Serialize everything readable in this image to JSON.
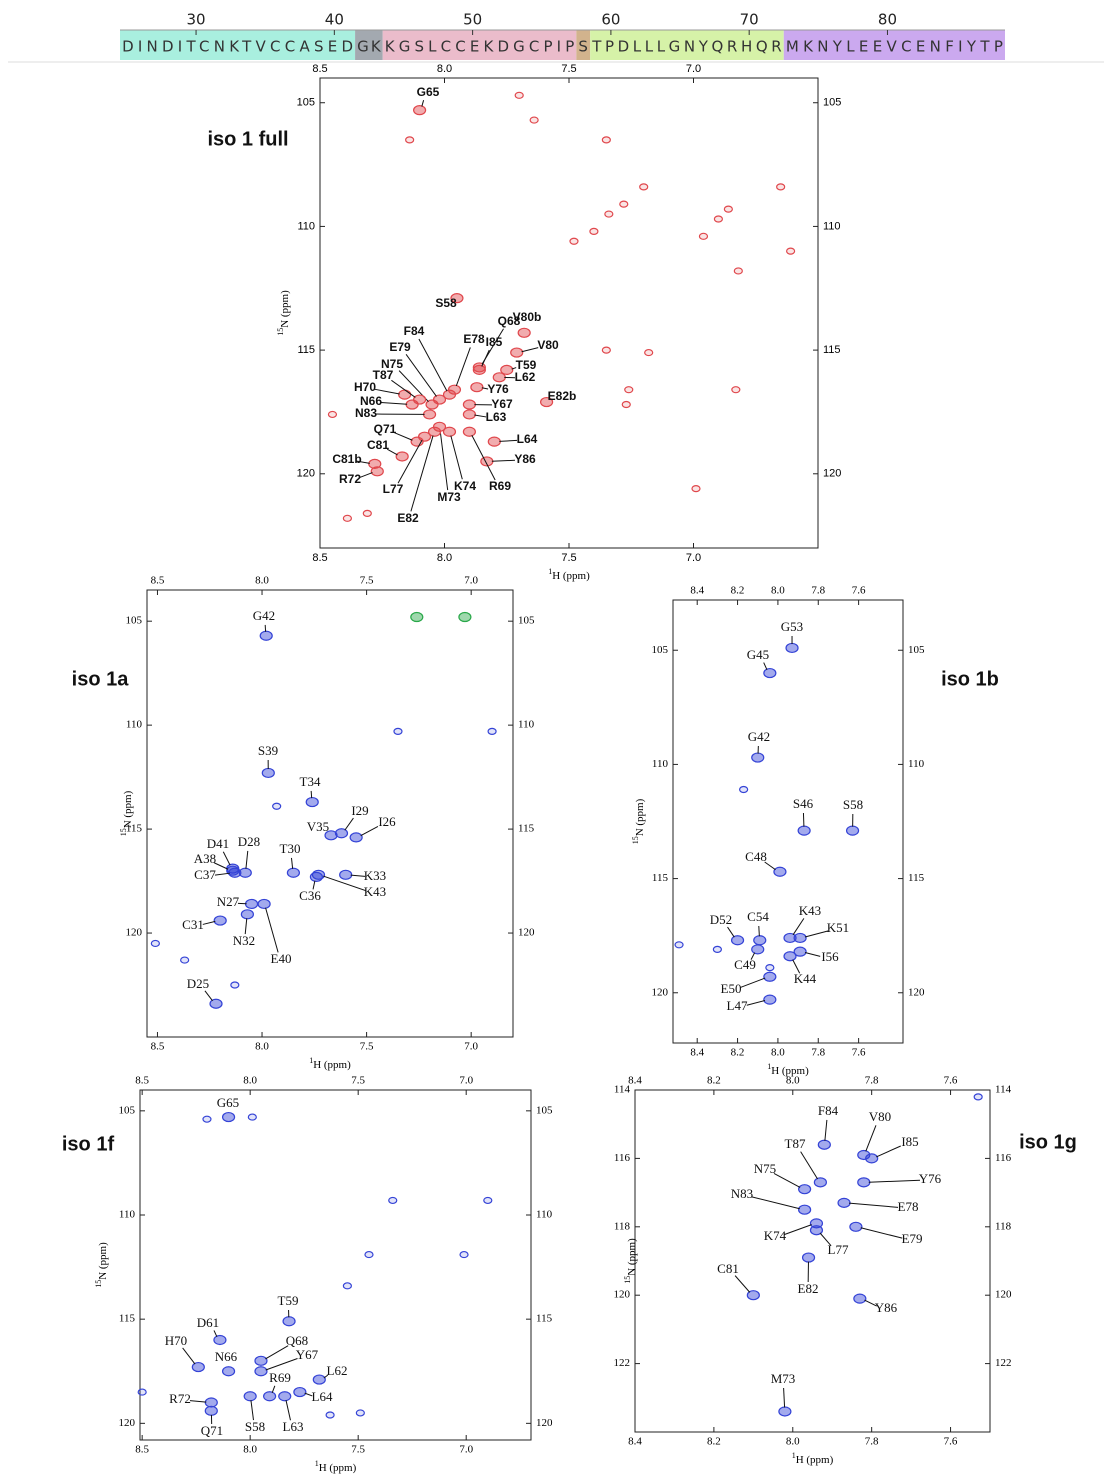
{
  "sequence": {
    "start": 25,
    "ticks": [
      30,
      40,
      50,
      60,
      70,
      80
    ],
    "segments": [
      {
        "residues": "DINDITCNKTVCCASED",
        "color": "#a9efdf"
      },
      {
        "residues": "GK",
        "color": "#a3a9b0"
      },
      {
        "residues": "KGSLCCEKDGCPIP",
        "color": "#ebbccb"
      },
      {
        "residues": "S",
        "color": "#d2b38d"
      },
      {
        "residues": "TPDLLLGNYQRHQR",
        "color": "#d6f2a8"
      },
      {
        "residues": "MKNYLEEVCENFIYTP",
        "color": "#cba9ef"
      }
    ]
  },
  "panels": [
    {
      "type": "scatter",
      "title": "iso 1 full",
      "color": "#e0474c",
      "x_label": {
        "sup": "1",
        "text": "H (ppm)"
      },
      "y_label": {
        "sup": "15",
        "text": "N (ppm)"
      },
      "xlim": [
        8.5,
        6.5
      ],
      "ylim": [
        104,
        123
      ],
      "xticks": [
        8.5,
        {
          "value": 8,
          "label": "8.0"
        },
        7.5,
        {
          "value": 7,
          "label": "7.0"
        }
      ],
      "yticks": [
        105,
        110,
        115,
        120
      ],
      "peaks": [
        {
          "label": "G65",
          "x": 8.1,
          "y": 105.3
        },
        {
          "label": "S58",
          "x": 7.95,
          "y": 112.9
        },
        {
          "label": "F84",
          "x": 7.98,
          "y": 116.8
        },
        {
          "label": "E78",
          "x": 7.96,
          "y": 116.6
        },
        {
          "label": "Q68",
          "x": 7.86,
          "y": 115.7
        },
        {
          "label": "V80b",
          "x": 7.68,
          "y": 114.3
        },
        {
          "label": "I85",
          "x": 7.86,
          "y": 115.8
        },
        {
          "label": "V80",
          "x": 7.71,
          "y": 115.1
        },
        {
          "label": "T59",
          "x": 7.75,
          "y": 115.8
        },
        {
          "label": "L62",
          "x": 7.78,
          "y": 116.1
        },
        {
          "label": "E79",
          "x": 8.02,
          "y": 117.0
        },
        {
          "label": "N75",
          "x": 8.05,
          "y": 117.2
        },
        {
          "label": "Y76",
          "x": 7.87,
          "y": 116.5
        },
        {
          "label": "H70",
          "x": 8.16,
          "y": 116.8
        },
        {
          "label": "T87",
          "x": 8.1,
          "y": 117.0
        },
        {
          "label": "Y67",
          "x": 7.9,
          "y": 117.2
        },
        {
          "label": "N66",
          "x": 8.13,
          "y": 117.2
        },
        {
          "label": "L63",
          "x": 7.9,
          "y": 117.6
        },
        {
          "label": "N83",
          "x": 8.06,
          "y": 117.6
        },
        {
          "label": "Q71",
          "x": 8.11,
          "y": 118.7
        },
        {
          "label": "L64",
          "x": 7.8,
          "y": 118.7
        },
        {
          "label": "C81",
          "x": 8.17,
          "y": 119.3
        },
        {
          "label": "Y86",
          "x": 7.83,
          "y": 119.5
        },
        {
          "label": "C81b",
          "x": 8.28,
          "y": 119.6
        },
        {
          "label": "R72",
          "x": 8.27,
          "y": 119.9
        },
        {
          "label": "R69",
          "x": 7.9,
          "y": 118.3
        },
        {
          "label": "K74",
          "x": 7.98,
          "y": 118.3
        },
        {
          "label": "M73",
          "x": 8.02,
          "y": 118.1
        },
        {
          "label": "L77",
          "x": 8.08,
          "y": 118.5
        },
        {
          "label": "E82",
          "x": 8.04,
          "y": 118.3
        },
        {
          "label": "E82b",
          "x": 7.59,
          "y": 117.1
        }
      ],
      "unlabeled": {
        "x": [
          7.7,
          7.64,
          8.14,
          7.35,
          7.2,
          6.65,
          7.48,
          7.4,
          7.34,
          7.28,
          6.96,
          6.9,
          6.86,
          6.61,
          6.82,
          7.35,
          7.18,
          7.26,
          7.27,
          6.83,
          6.99,
          8.39,
          8.45,
          8.31
        ],
        "y": [
          104.7,
          105.7,
          106.5,
          106.5,
          108.4,
          108.4,
          110.6,
          110.2,
          109.5,
          109.1,
          110.4,
          109.7,
          109.3,
          111.0,
          111.8,
          115.0,
          115.1,
          116.6,
          117.2,
          116.6,
          120.6,
          121.8,
          117.6,
          121.6
        ]
      }
    },
    {
      "type": "scatter",
      "title": "iso 1a",
      "color": "#3443d6",
      "x_label": {
        "sup": "1",
        "text": "H (ppm)"
      },
      "y_label": {
        "sup": "15",
        "text": "N (ppm)"
      },
      "xlim": [
        8.55,
        6.8
      ],
      "ylim": [
        103.5,
        125
      ],
      "xticks": [
        8.5,
        {
          "value": 8,
          "label": "8.0"
        },
        7.5,
        {
          "value": 7,
          "label": "7.0"
        }
      ],
      "yticks": [
        105,
        110,
        115,
        120
      ],
      "peaks": [
        {
          "label": "G42",
          "x": 7.98,
          "y": 105.7
        },
        {
          "label": "S39",
          "x": 7.97,
          "y": 112.3
        },
        {
          "label": "T34",
          "x": 7.76,
          "y": 113.7
        },
        {
          "label": "I29",
          "x": 7.62,
          "y": 115.2
        },
        {
          "label": "V35",
          "x": 7.67,
          "y": 115.3
        },
        {
          "label": "I26",
          "x": 7.55,
          "y": 115.4
        },
        {
          "label": "D41",
          "x": 8.14,
          "y": 116.9
        },
        {
          "label": "D28",
          "x": 8.08,
          "y": 117.1
        },
        {
          "label": "T30",
          "x": 7.85,
          "y": 117.1
        },
        {
          "label": "A38",
          "x": 8.14,
          "y": 117.0
        },
        {
          "label": "C37",
          "x": 8.13,
          "y": 117.1
        },
        {
          "label": "K33",
          "x": 7.6,
          "y": 117.2
        },
        {
          "label": "K43",
          "x": 7.73,
          "y": 117.2
        },
        {
          "label": "C36",
          "x": 7.74,
          "y": 117.3
        },
        {
          "label": "N27",
          "x": 8.05,
          "y": 118.6
        },
        {
          "label": "C31",
          "x": 8.2,
          "y": 119.4
        },
        {
          "label": "N32",
          "x": 8.07,
          "y": 119.1
        },
        {
          "label": "E40",
          "x": 7.99,
          "y": 118.6
        },
        {
          "label": "D25",
          "x": 8.22,
          "y": 123.4
        }
      ],
      "unlabeled": {
        "x": [
          7.35,
          6.9,
          7.93,
          8.51,
          8.37,
          8.13
        ],
        "y": [
          110.3,
          110.3,
          113.9,
          120.5,
          121.3,
          122.5
        ]
      },
      "other_peaks": {
        "color": "#2aa84a",
        "x": [
          7.26,
          7.03
        ],
        "y": [
          104.8,
          104.8
        ]
      }
    },
    {
      "type": "scatter",
      "title": "iso 1b",
      "color": "#3443d6",
      "x_label": {
        "sup": "1",
        "text": "H (ppm)"
      },
      "y_label": {
        "sup": "15",
        "text": "N (ppm)"
      },
      "xlim": [
        8.52,
        7.38
      ],
      "ylim": [
        102.8,
        122.2
      ],
      "xticks": [
        8.4,
        8.2,
        {
          "value": 8,
          "label": "8.0"
        },
        7.8,
        7.6
      ],
      "yticks": [
        105,
        110,
        115,
        120
      ],
      "peaks": [
        {
          "label": "G53",
          "x": 7.93,
          "y": 104.9
        },
        {
          "label": "G45",
          "x": 8.04,
          "y": 106.0
        },
        {
          "label": "G42",
          "x": 8.1,
          "y": 109.7
        },
        {
          "label": "S46",
          "x": 7.87,
          "y": 112.9
        },
        {
          "label": "S58",
          "x": 7.63,
          "y": 112.9
        },
        {
          "label": "C48",
          "x": 7.99,
          "y": 114.7
        },
        {
          "label": "D52",
          "x": 8.2,
          "y": 117.7
        },
        {
          "label": "C54",
          "x": 8.09,
          "y": 117.7
        },
        {
          "label": "K43",
          "x": 7.94,
          "y": 117.6
        },
        {
          "label": "K51",
          "x": 7.89,
          "y": 117.6
        },
        {
          "label": "I56",
          "x": 7.89,
          "y": 118.2
        },
        {
          "label": "C49",
          "x": 8.1,
          "y": 118.1
        },
        {
          "label": "K44",
          "x": 7.94,
          "y": 118.4
        },
        {
          "label": "E50",
          "x": 8.04,
          "y": 119.3
        },
        {
          "label": "L47",
          "x": 8.04,
          "y": 120.3
        }
      ],
      "unlabeled": {
        "x": [
          8.17,
          8.49,
          8.3,
          8.04
        ],
        "y": [
          111.1,
          117.9,
          118.1,
          118.9
        ]
      }
    },
    {
      "type": "scatter",
      "title": "iso 1f",
      "color": "#3443d6",
      "x_label": {
        "sup": "1",
        "text": "H (ppm)"
      },
      "y_label": {
        "sup": "15",
        "text": "N (ppm)"
      },
      "xlim": [
        8.51,
        6.7
      ],
      "ylim": [
        104,
        120.8
      ],
      "xticks": [
        8.5,
        {
          "value": 8,
          "label": "8.0"
        },
        7.5,
        {
          "value": 7,
          "label": "7.0"
        }
      ],
      "yticks": [
        105,
        110,
        115,
        120
      ],
      "peaks": [
        {
          "label": "G65",
          "x": 8.1,
          "y": 105.3
        },
        {
          "label": "T59",
          "x": 7.82,
          "y": 115.1
        },
        {
          "label": "D61",
          "x": 8.14,
          "y": 116.0
        },
        {
          "label": "H70",
          "x": 8.24,
          "y": 117.3
        },
        {
          "label": "N66",
          "x": 8.1,
          "y": 117.5
        },
        {
          "label": "Q68",
          "x": 7.95,
          "y": 117.0
        },
        {
          "label": "Y67",
          "x": 7.95,
          "y": 117.5
        },
        {
          "label": "L62",
          "x": 7.68,
          "y": 117.9
        },
        {
          "label": "R69",
          "x": 7.91,
          "y": 118.7
        },
        {
          "label": "L64",
          "x": 7.77,
          "y": 118.5
        },
        {
          "label": "R72",
          "x": 8.18,
          "y": 119.0
        },
        {
          "label": "S58",
          "x": 8.0,
          "y": 118.7
        },
        {
          "label": "L63",
          "x": 7.84,
          "y": 118.7
        },
        {
          "label": "Q71",
          "x": 8.18,
          "y": 119.4
        }
      ],
      "unlabeled": {
        "x": [
          8.2,
          7.99,
          7.34,
          6.9,
          7.45,
          7.01,
          7.55,
          8.5,
          7.49,
          7.63
        ],
        "y": [
          105.4,
          105.3,
          109.3,
          109.3,
          111.9,
          111.9,
          113.4,
          118.5,
          119.5,
          119.6
        ]
      }
    },
    {
      "type": "scatter",
      "title": "iso 1g",
      "color": "#3443d6",
      "x_label": {
        "sup": "1",
        "text": "H (ppm)"
      },
      "y_label": {
        "sup": "15",
        "text": "N (ppm)"
      },
      "xlim": [
        8.4,
        7.5
      ],
      "ylim": [
        114,
        124
      ],
      "xticks": [
        8.4,
        8.2,
        {
          "value": 8,
          "label": "8.0"
        },
        7.8,
        7.6
      ],
      "yticks": [
        114,
        116,
        118,
        120,
        122
      ],
      "peaks": [
        {
          "label": "F84",
          "x": 7.92,
          "y": 115.6
        },
        {
          "label": "V80",
          "x": 7.82,
          "y": 115.9
        },
        {
          "label": "I85",
          "x": 7.8,
          "y": 116.0
        },
        {
          "label": "T87",
          "x": 7.93,
          "y": 116.7
        },
        {
          "label": "Y76",
          "x": 7.82,
          "y": 116.7
        },
        {
          "label": "N75",
          "x": 7.97,
          "y": 116.9
        },
        {
          "label": "N83",
          "x": 7.97,
          "y": 117.5
        },
        {
          "label": "E78",
          "x": 7.87,
          "y": 117.3
        },
        {
          "label": "E79",
          "x": 7.84,
          "y": 118.0
        },
        {
          "label": "K74",
          "x": 7.94,
          "y": 117.9
        },
        {
          "label": "L77",
          "x": 7.94,
          "y": 118.1
        },
        {
          "label": "C81",
          "x": 8.1,
          "y": 120.0
        },
        {
          "label": "E82",
          "x": 7.96,
          "y": 118.9
        },
        {
          "label": "Y86",
          "x": 7.83,
          "y": 120.1
        },
        {
          "label": "M73",
          "x": 8.02,
          "y": 123.4
        }
      ],
      "unlabeled": {
        "x": [
          7.53
        ],
        "y": [
          114.2
        ]
      }
    }
  ]
}
